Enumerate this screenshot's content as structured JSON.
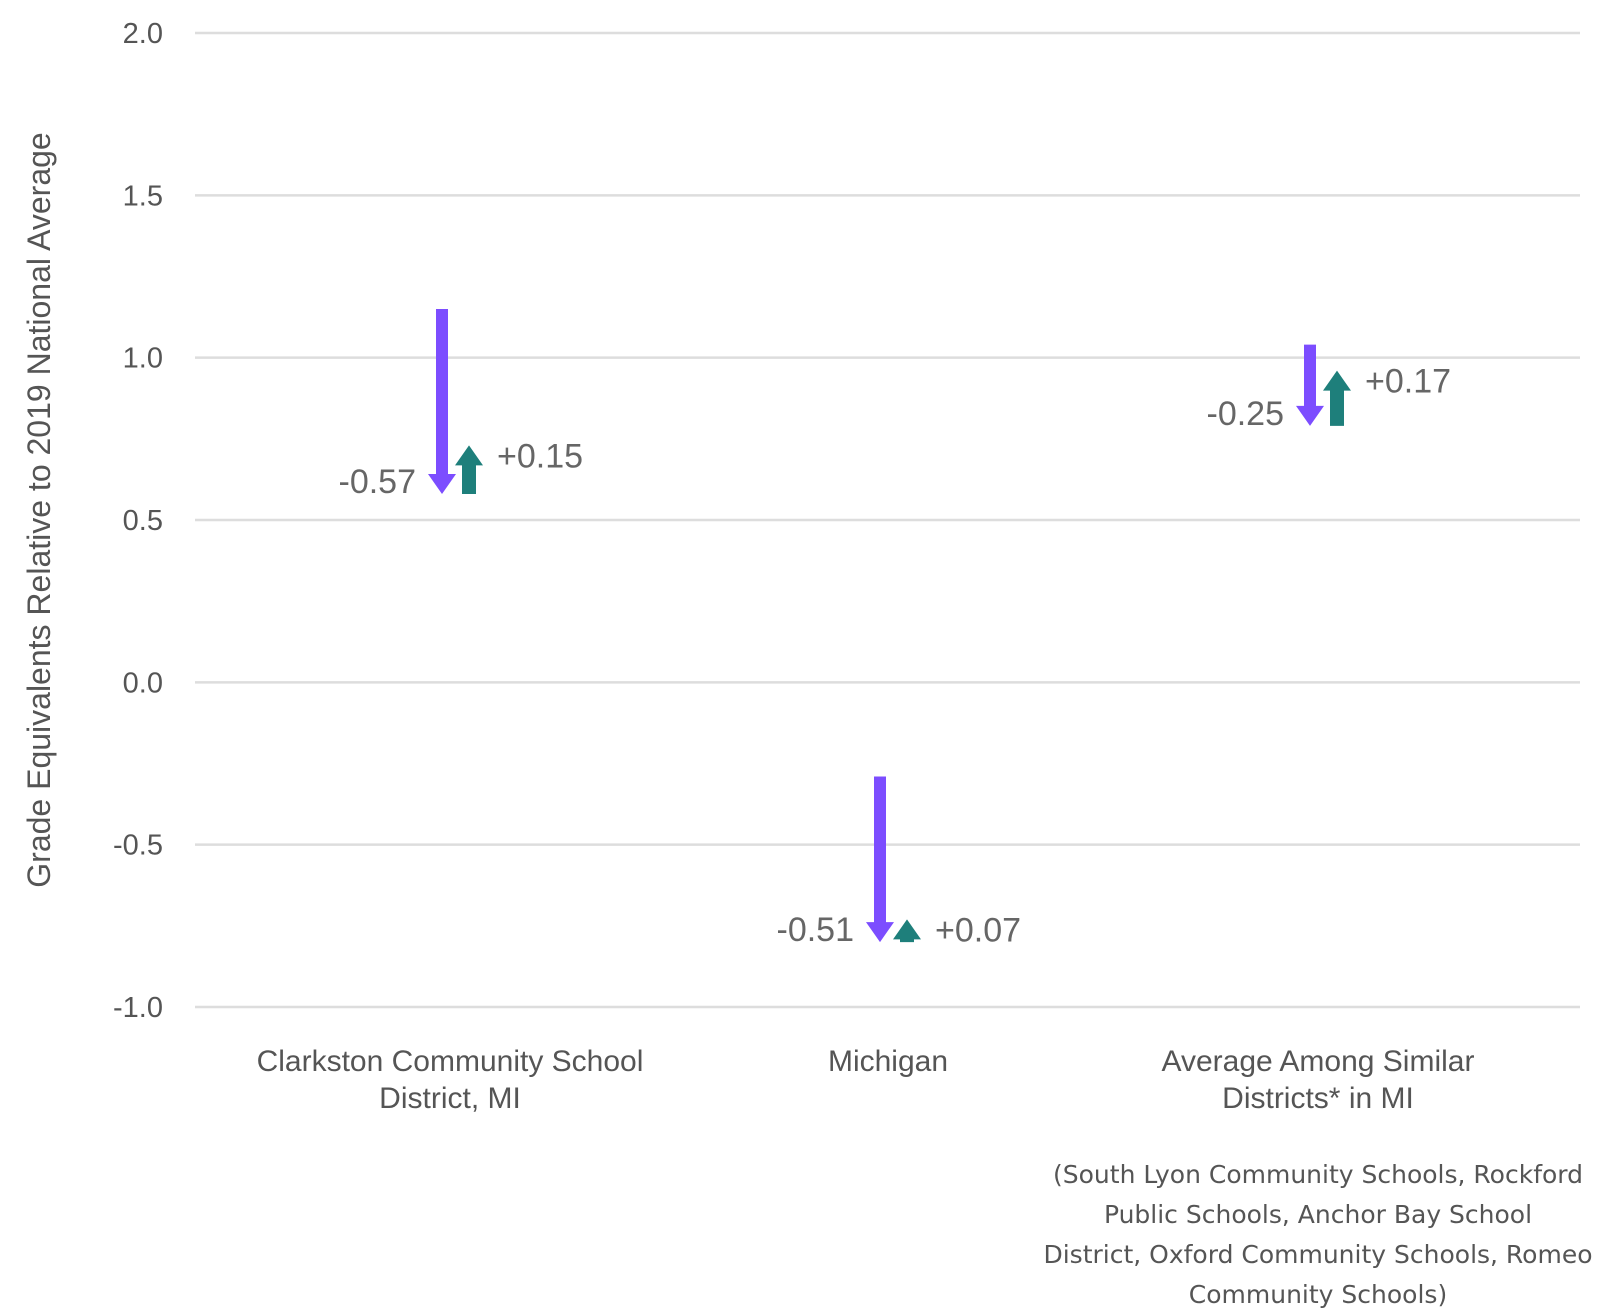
{
  "chart_data": {
    "type": "arrow",
    "ylabel": "Grade Equivalents Relative to 2019 National Average",
    "ylim": [
      -1.0,
      2.0
    ],
    "yticks": [
      {
        "value": 2.0,
        "label": "2.0"
      },
      {
        "value": 1.5,
        "label": "1.5"
      },
      {
        "value": 1.0,
        "label": "1.0"
      },
      {
        "value": 0.5,
        "label": "0.5"
      },
      {
        "value": 0.0,
        "label": "0.0"
      },
      {
        "value": -0.5,
        "label": "-0.5"
      },
      {
        "value": -1.0,
        "label": "-1.0"
      }
    ],
    "grid": true,
    "categories": [
      {
        "label_lines": [
          "Clarkston Community School",
          "District, MI"
        ],
        "note_lines": [],
        "decline": {
          "from": 1.15,
          "to": 0.58,
          "label": "-0.57"
        },
        "recovery": {
          "from": 0.58,
          "to": 0.73,
          "label": "+0.15"
        }
      },
      {
        "label_lines": [
          "Michigan"
        ],
        "note_lines": [],
        "decline": {
          "from": -0.29,
          "to": -0.8,
          "label": "-0.51"
        },
        "recovery": {
          "from": -0.8,
          "to": -0.73,
          "label": "+0.07"
        }
      },
      {
        "label_lines": [
          "Average Among Similar",
          "Districts* in MI"
        ],
        "note_lines": [
          "(South Lyon Community Schools, Rockford",
          "Public Schools, Anchor Bay School",
          "District, Oxford Community Schools, Romeo",
          "Community Schools)"
        ],
        "decline": {
          "from": 1.04,
          "to": 0.79,
          "label": "-0.25"
        },
        "recovery": {
          "from": 0.79,
          "to": 0.96,
          "label": "+0.17"
        }
      }
    ],
    "colors": {
      "decline": "#7c4dff",
      "recovery": "#1e7f7b",
      "grid": "#dddddd",
      "text": "#555555"
    }
  }
}
